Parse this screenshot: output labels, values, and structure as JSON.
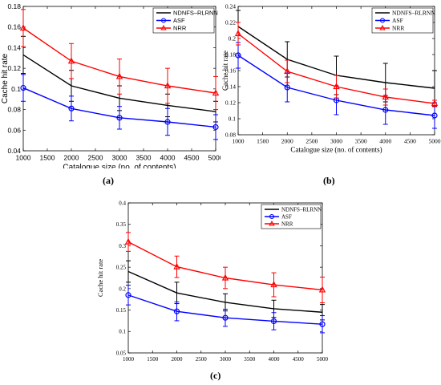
{
  "figure": {
    "captions": [
      "(a)",
      "(b)",
      "(c)"
    ],
    "colors": {
      "NDNFS-RLRNN": "#000000",
      "ASF": "#0000ff",
      "NRR": "#ff0000"
    }
  },
  "chart_data": [
    {
      "type": "line",
      "panel": "(a)",
      "xlabel": "Catalogue size (no. of contents)",
      "ylabel": "Cache hit rate",
      "xlim": [
        1000,
        5000
      ],
      "ylim": [
        0.04,
        0.18
      ],
      "xticks": [
        1000,
        1500,
        2000,
        2500,
        3000,
        3500,
        4000,
        4500,
        5000
      ],
      "xtick_labels": [
        "1000",
        "1500",
        "2000",
        "2500",
        "3000",
        "3500",
        "4000",
        "4500",
        "5000"
      ],
      "yticks": [
        0.04,
        0.06,
        0.08,
        0.1,
        0.12,
        0.14,
        0.16,
        0.18
      ],
      "ytick_labels": [
        "0.04",
        "0.06",
        "0.08",
        "0.1",
        "0.12",
        "0.14",
        "0.16",
        "0.18"
      ],
      "legend_position": "top-right",
      "x": [
        1000,
        2000,
        3000,
        4000,
        5000
      ],
      "series": [
        {
          "name": "NDNFS–RLRNN",
          "color": "#000000",
          "marker": "none",
          "values": [
            0.133,
            0.103,
            0.091,
            0.084,
            0.078
          ],
          "err": [
            0.018,
            0.015,
            0.012,
            0.011,
            0.01
          ]
        },
        {
          "name": "ASF",
          "color": "#0000ff",
          "marker": "circle",
          "values": [
            0.101,
            0.081,
            0.072,
            0.068,
            0.063
          ],
          "err": [
            0.013,
            0.012,
            0.011,
            0.013,
            0.012
          ]
        },
        {
          "name": "NRR",
          "color": "#ff0000",
          "marker": "triangle",
          "values": [
            0.159,
            0.127,
            0.112,
            0.103,
            0.096
          ],
          "err": [
            0.018,
            0.017,
            0.017,
            0.017,
            0.016
          ]
        }
      ]
    },
    {
      "type": "line",
      "panel": "(b)",
      "xlabel": "Catalogue size (no. of contents)",
      "ylabel": "Cache hit rate",
      "xlim": [
        1000,
        5000
      ],
      "ylim": [
        0.08,
        0.24
      ],
      "xticks": [
        1000,
        1500,
        2000,
        2500,
        3000,
        3500,
        4000,
        4500,
        5000
      ],
      "xtick_labels": [
        "1000",
        "1500",
        "2000",
        "2500",
        "3000",
        "3500",
        "4000",
        "4500",
        "5000"
      ],
      "yticks": [
        0.08,
        0.1,
        0.12,
        0.14,
        0.16,
        0.18,
        0.2,
        0.22,
        0.24
      ],
      "ytick_labels": [
        "0.08",
        "0.1",
        "0.12",
        "0.14",
        "0.16",
        "0.18",
        "0.2",
        "0.22",
        "0.24"
      ],
      "legend_position": "top-right",
      "x": [
        1000,
        2000,
        3000,
        4000,
        5000
      ],
      "series": [
        {
          "name": "NDNFS–RLRNN",
          "color": "#000000",
          "marker": "none",
          "values": [
            0.215,
            0.174,
            0.154,
            0.145,
            0.138
          ],
          "err": [
            0.02,
            0.022,
            0.024,
            0.024,
            0.022
          ]
        },
        {
          "name": "ASF",
          "color": "#0000ff",
          "marker": "circle",
          "values": [
            0.179,
            0.139,
            0.123,
            0.111,
            0.104
          ],
          "err": [
            0.016,
            0.018,
            0.018,
            0.018,
            0.016
          ]
        },
        {
          "name": "NRR",
          "color": "#ff0000",
          "marker": "triangle",
          "values": [
            0.206,
            0.159,
            0.14,
            0.127,
            0.119
          ],
          "err": [
            0.014,
            0.014,
            0.014,
            0.01,
            0.004
          ]
        }
      ]
    },
    {
      "type": "line",
      "panel": "(c)",
      "xlabel": "Catalogue size (no. of contents)",
      "ylabel": "Cache hit rate",
      "xlim": [
        1000,
        5000
      ],
      "ylim": [
        0.05,
        0.4
      ],
      "xticks": [
        1000,
        1500,
        2000,
        2500,
        3000,
        3500,
        4000,
        4500,
        5000
      ],
      "xtick_labels": [
        "1000",
        "1500",
        "2000",
        "2500",
        "3000",
        "3500",
        "4000",
        "4500",
        "5000"
      ],
      "yticks": [
        0.05,
        0.1,
        0.15,
        0.2,
        0.25,
        0.3,
        0.35,
        0.4
      ],
      "ytick_labels": [
        "0.05",
        "0.1",
        "0.15",
        "0.2",
        "0.25",
        "0.3",
        "0.35",
        "0.4"
      ],
      "legend_position": "top-right",
      "x": [
        1000,
        2000,
        3000,
        4000,
        5000
      ],
      "series": [
        {
          "name": "NDNFS–RLRNN",
          "color": "#000000",
          "marker": "none",
          "values": [
            0.24,
            0.19,
            0.168,
            0.153,
            0.145
          ],
          "err": [
            0.025,
            0.025,
            0.02,
            0.02,
            0.018
          ]
        },
        {
          "name": "ASF",
          "color": "#0000ff",
          "marker": "circle",
          "values": [
            0.185,
            0.147,
            0.132,
            0.124,
            0.117
          ],
          "err": [
            0.023,
            0.022,
            0.02,
            0.02,
            0.02
          ]
        },
        {
          "name": "NRR",
          "color": "#ff0000",
          "marker": "triangle",
          "values": [
            0.309,
            0.251,
            0.225,
            0.209,
            0.197
          ],
          "err": [
            0.022,
            0.025,
            0.025,
            0.028,
            0.03
          ]
        }
      ]
    }
  ]
}
